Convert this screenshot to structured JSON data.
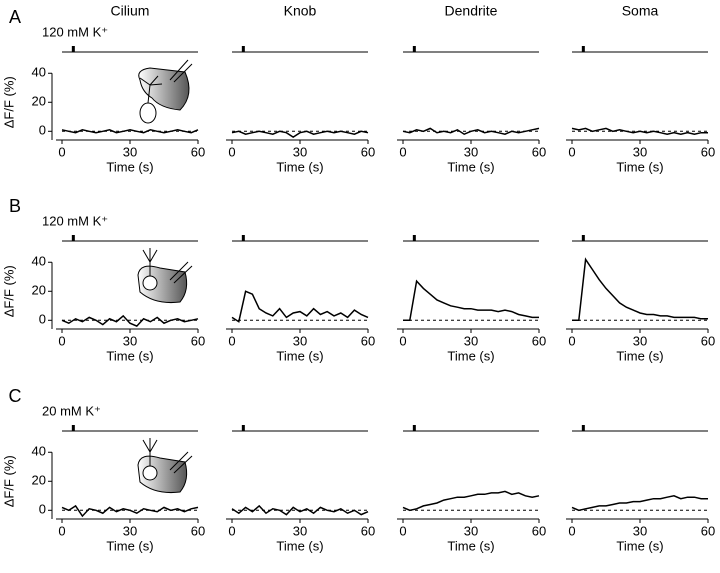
{
  "chart_data": [
    {
      "type": "line",
      "panel": "A",
      "stimulus_label": "120 mM K⁺",
      "title": "Cilium",
      "ylabel": "ΔF/F (%)",
      "xlabel": "Time (s)",
      "show_yaxis": true,
      "xlim": [
        0,
        60
      ],
      "ylim": [
        -6,
        45
      ],
      "xticks": [
        0,
        30,
        60
      ],
      "yticks": [
        0,
        20,
        40
      ],
      "baseline": 0,
      "stimulus": 5,
      "color": "#000000",
      "x": [
        0,
        3,
        6,
        9,
        12,
        15,
        18,
        21,
        24,
        27,
        30,
        33,
        36,
        39,
        42,
        45,
        48,
        51,
        54,
        57,
        60
      ],
      "values": [
        1,
        0,
        -1,
        1,
        0,
        -1,
        0,
        1,
        -1,
        0,
        1,
        0,
        -1,
        1,
        0,
        -1,
        0,
        1,
        0,
        -1,
        1
      ]
    },
    {
      "type": "line",
      "title": "Knob",
      "xlabel": "Time (s)",
      "show_yaxis": false,
      "xlim": [
        0,
        60
      ],
      "ylim": [
        -6,
        45
      ],
      "xticks": [
        0,
        30,
        60
      ],
      "baseline": 0,
      "stimulus": 5,
      "color": "#000000",
      "x": [
        0,
        3,
        6,
        9,
        12,
        15,
        18,
        21,
        24,
        27,
        30,
        33,
        36,
        39,
        42,
        45,
        48,
        51,
        54,
        57,
        60
      ],
      "values": [
        -1,
        0,
        -2,
        -1,
        0,
        -1,
        -2,
        0,
        -1,
        -4,
        -1,
        0,
        -2,
        -1,
        0,
        -1,
        0,
        -1,
        -2,
        0,
        -1
      ]
    },
    {
      "type": "line",
      "title": "Dendrite",
      "xlabel": "Time (s)",
      "show_yaxis": false,
      "xlim": [
        0,
        60
      ],
      "ylim": [
        -6,
        45
      ],
      "xticks": [
        0,
        30,
        60
      ],
      "baseline": 0,
      "stimulus": 5,
      "color": "#000000",
      "x": [
        0,
        3,
        6,
        9,
        12,
        15,
        18,
        21,
        24,
        27,
        30,
        33,
        36,
        39,
        42,
        45,
        48,
        51,
        54,
        57,
        60
      ],
      "values": [
        0,
        -1,
        1,
        0,
        2,
        -1,
        0,
        -1,
        1,
        -2,
        0,
        1,
        -1,
        0,
        -1,
        -2,
        0,
        -1,
        0,
        1,
        2
      ]
    },
    {
      "type": "line",
      "title": "Soma",
      "xlabel": "Time (s)",
      "show_yaxis": false,
      "xlim": [
        0,
        60
      ],
      "ylim": [
        -6,
        45
      ],
      "xticks": [
        0,
        30,
        60
      ],
      "baseline": 0,
      "stimulus": 5,
      "color": "#000000",
      "x": [
        0,
        3,
        6,
        9,
        12,
        15,
        18,
        21,
        24,
        27,
        30,
        33,
        36,
        39,
        42,
        45,
        48,
        51,
        54,
        57,
        60
      ],
      "values": [
        2,
        1,
        2,
        0,
        1,
        2,
        0,
        1,
        0,
        -1,
        0,
        -1,
        0,
        -1,
        -2,
        -1,
        -2,
        -1,
        -2,
        -1,
        -1
      ]
    },
    {
      "type": "line",
      "panel": "B",
      "stimulus_label": "120 mM K⁺",
      "ylabel": "ΔF/F (%)",
      "xlabel": "Time (s)",
      "show_yaxis": true,
      "xlim": [
        0,
        60
      ],
      "ylim": [
        -6,
        45
      ],
      "xticks": [
        0,
        30,
        60
      ],
      "yticks": [
        0,
        20,
        40
      ],
      "baseline": 0,
      "stimulus": 5,
      "color": "#000000",
      "x": [
        0,
        3,
        6,
        9,
        12,
        15,
        18,
        21,
        24,
        27,
        30,
        33,
        36,
        39,
        42,
        45,
        48,
        51,
        54,
        57,
        60
      ],
      "values": [
        0,
        -2,
        1,
        -1,
        2,
        0,
        -3,
        1,
        -1,
        3,
        -2,
        -4,
        1,
        -1,
        2,
        -2,
        0,
        1,
        -1,
        0,
        1
      ]
    },
    {
      "type": "line",
      "xlabel": "Time (s)",
      "show_yaxis": false,
      "xlim": [
        0,
        60
      ],
      "ylim": [
        -6,
        45
      ],
      "xticks": [
        0,
        30,
        60
      ],
      "baseline": 0,
      "stimulus": 5,
      "color": "#000000",
      "x": [
        0,
        3,
        6,
        9,
        12,
        15,
        18,
        21,
        24,
        27,
        30,
        33,
        36,
        39,
        42,
        45,
        48,
        51,
        54,
        57,
        60
      ],
      "values": [
        2,
        -1,
        20,
        18,
        8,
        5,
        3,
        8,
        2,
        5,
        6,
        3,
        8,
        4,
        6,
        3,
        5,
        2,
        7,
        4,
        2
      ]
    },
    {
      "type": "line",
      "xlabel": "Time (s)",
      "show_yaxis": false,
      "xlim": [
        0,
        60
      ],
      "ylim": [
        -6,
        45
      ],
      "xticks": [
        0,
        30,
        60
      ],
      "baseline": 0,
      "stimulus": 5,
      "color": "#000000",
      "x": [
        0,
        3,
        6,
        9,
        12,
        15,
        18,
        21,
        24,
        27,
        30,
        33,
        36,
        39,
        42,
        45,
        48,
        51,
        54,
        57,
        60
      ],
      "values": [
        0,
        0,
        27,
        22,
        18,
        14,
        12,
        10,
        9,
        8,
        8,
        7,
        7,
        7,
        6,
        7,
        6,
        4,
        3,
        2,
        2
      ]
    },
    {
      "type": "line",
      "xlabel": "Time (s)",
      "show_yaxis": false,
      "xlim": [
        0,
        60
      ],
      "ylim": [
        -6,
        45
      ],
      "xticks": [
        0,
        30,
        60
      ],
      "baseline": 0,
      "stimulus": 5,
      "color": "#000000",
      "x": [
        0,
        3,
        6,
        9,
        12,
        15,
        18,
        21,
        24,
        27,
        30,
        33,
        36,
        39,
        42,
        45,
        48,
        51,
        54,
        57,
        60
      ],
      "values": [
        0,
        0,
        42,
        35,
        28,
        22,
        17,
        12,
        9,
        7,
        5,
        4,
        4,
        3,
        3,
        2,
        2,
        2,
        2,
        1,
        1
      ]
    },
    {
      "type": "line",
      "panel": "C",
      "stimulus_label": "20 mM K⁺",
      "ylabel": "ΔF/F (%)",
      "xlabel": "Time (s)",
      "show_yaxis": true,
      "xlim": [
        0,
        60
      ],
      "ylim": [
        -6,
        45
      ],
      "xticks": [
        0,
        30,
        60
      ],
      "yticks": [
        0,
        20,
        40
      ],
      "baseline": 0,
      "stimulus": 5,
      "color": "#000000",
      "x": [
        0,
        3,
        6,
        9,
        12,
        15,
        18,
        21,
        24,
        27,
        30,
        33,
        36,
        39,
        42,
        45,
        48,
        51,
        54,
        57,
        60
      ],
      "values": [
        2,
        0,
        3,
        -4,
        1,
        0,
        -2,
        2,
        -1,
        1,
        0,
        -2,
        1,
        0,
        -1,
        2,
        0,
        1,
        -1,
        1,
        2
      ]
    },
    {
      "type": "line",
      "xlabel": "Time (s)",
      "show_yaxis": false,
      "xlim": [
        0,
        60
      ],
      "ylim": [
        -6,
        45
      ],
      "xticks": [
        0,
        30,
        60
      ],
      "baseline": 0,
      "stimulus": 5,
      "color": "#000000",
      "x": [
        0,
        3,
        6,
        9,
        12,
        15,
        18,
        21,
        24,
        27,
        30,
        33,
        36,
        39,
        42,
        45,
        48,
        51,
        54,
        57,
        60
      ],
      "values": [
        1,
        -2,
        2,
        -1,
        3,
        -2,
        1,
        0,
        -3,
        2,
        -1,
        1,
        -2,
        2,
        0,
        -1,
        1,
        -2,
        0,
        -3,
        -1
      ]
    },
    {
      "type": "line",
      "xlabel": "Time (s)",
      "show_yaxis": false,
      "xlim": [
        0,
        60
      ],
      "ylim": [
        -6,
        45
      ],
      "xticks": [
        0,
        30,
        60
      ],
      "baseline": 0,
      "stimulus": 5,
      "color": "#000000",
      "x": [
        0,
        3,
        6,
        9,
        12,
        15,
        18,
        21,
        24,
        27,
        30,
        33,
        36,
        39,
        42,
        45,
        48,
        51,
        54,
        57,
        60
      ],
      "values": [
        2,
        0,
        1,
        3,
        4,
        5,
        7,
        8,
        9,
        9,
        10,
        11,
        11,
        12,
        12,
        13,
        11,
        12,
        10,
        9,
        10
      ]
    },
    {
      "type": "line",
      "xlabel": "Time (s)",
      "show_yaxis": false,
      "xlim": [
        0,
        60
      ],
      "ylim": [
        -6,
        45
      ],
      "xticks": [
        0,
        30,
        60
      ],
      "baseline": 0,
      "stimulus": 5,
      "color": "#000000",
      "x": [
        0,
        3,
        6,
        9,
        12,
        15,
        18,
        21,
        24,
        27,
        30,
        33,
        36,
        39,
        42,
        45,
        48,
        51,
        54,
        57,
        60
      ],
      "values": [
        2,
        0,
        1,
        2,
        3,
        3,
        4,
        5,
        5,
        6,
        6,
        7,
        8,
        8,
        9,
        10,
        8,
        9,
        9,
        8,
        8
      ]
    }
  ]
}
